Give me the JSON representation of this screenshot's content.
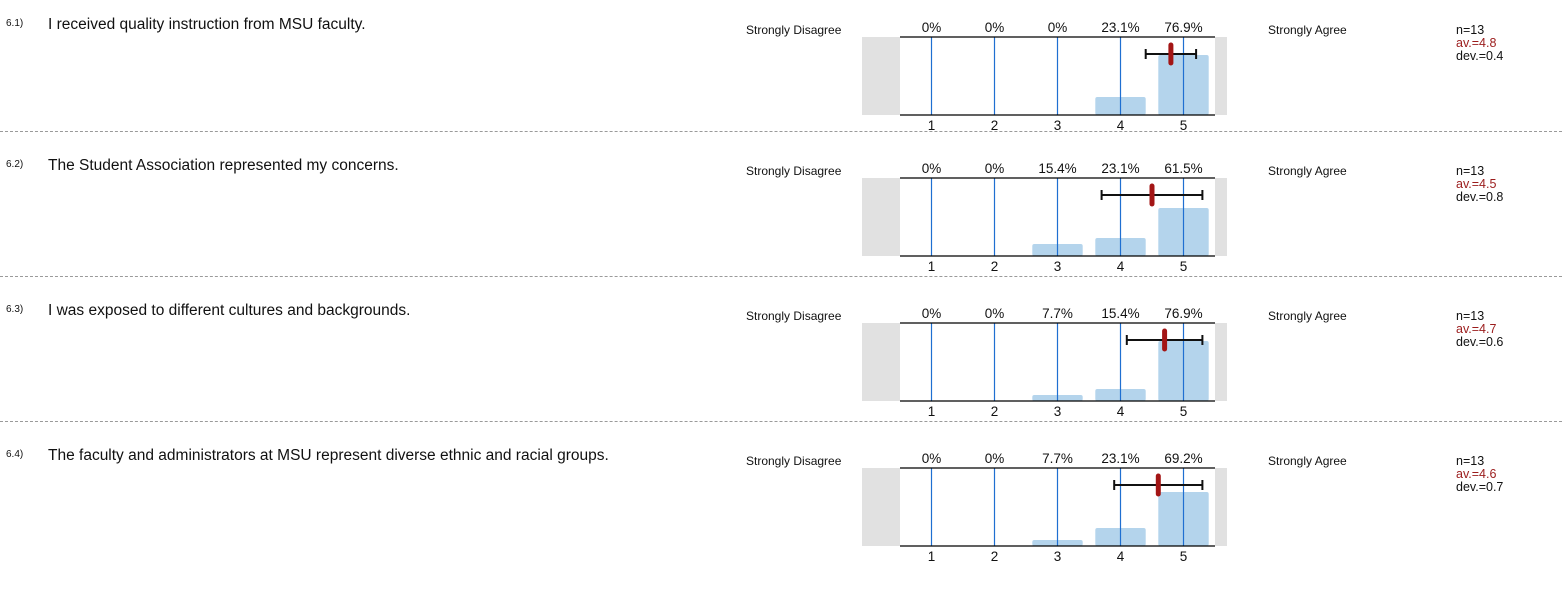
{
  "scale": {
    "left_label": "Strongly Disagree",
    "right_label": "Strongly Agree"
  },
  "chart_data": [
    {
      "type": "bar",
      "number": "6.1)",
      "question": "I received quality instruction from MSU faculty.",
      "categories": [
        "1",
        "2",
        "3",
        "4",
        "5"
      ],
      "values": [
        0,
        0,
        0,
        23.1,
        76.9
      ],
      "value_labels": [
        "0%",
        "0%",
        "0%",
        "23.1%",
        "76.9%"
      ],
      "n_label": "n=13",
      "av_label": "av.=4.8",
      "dev_label": "dev.=0.4",
      "mean": 4.8,
      "dev": 0.4
    },
    {
      "type": "bar",
      "number": "6.2)",
      "question": "The Student Association represented my concerns.",
      "categories": [
        "1",
        "2",
        "3",
        "4",
        "5"
      ],
      "values": [
        0,
        0,
        15.4,
        23.1,
        61.5
      ],
      "value_labels": [
        "0%",
        "0%",
        "15.4%",
        "23.1%",
        "61.5%"
      ],
      "n_label": "n=13",
      "av_label": "av.=4.5",
      "dev_label": "dev.=0.8",
      "mean": 4.5,
      "dev": 0.8
    },
    {
      "type": "bar",
      "number": "6.3)",
      "question": "I was exposed to different cultures and backgrounds.",
      "categories": [
        "1",
        "2",
        "3",
        "4",
        "5"
      ],
      "values": [
        0,
        0,
        7.7,
        15.4,
        76.9
      ],
      "value_labels": [
        "0%",
        "0%",
        "7.7%",
        "15.4%",
        "76.9%"
      ],
      "n_label": "n=13",
      "av_label": "av.=4.7",
      "dev_label": "dev.=0.6",
      "mean": 4.7,
      "dev": 0.6
    },
    {
      "type": "bar",
      "number": "6.4)",
      "question": "The faculty and administrators at MSU represent diverse ethnic and racial groups.",
      "categories": [
        "1",
        "2",
        "3",
        "4",
        "5"
      ],
      "values": [
        0,
        0,
        7.7,
        23.1,
        69.2
      ],
      "value_labels": [
        "0%",
        "0%",
        "7.7%",
        "23.1%",
        "69.2%"
      ],
      "n_label": "n=13",
      "av_label": "av.=4.6",
      "dev_label": "dev.=0.7",
      "mean": 4.6,
      "dev": 0.7
    }
  ],
  "colors": {
    "bar": "#b4d4ec",
    "gridline": "#1f6fd1",
    "mean": "#a31515",
    "side_box": "#e1e1e1",
    "av_text": "#9b1c1c"
  }
}
